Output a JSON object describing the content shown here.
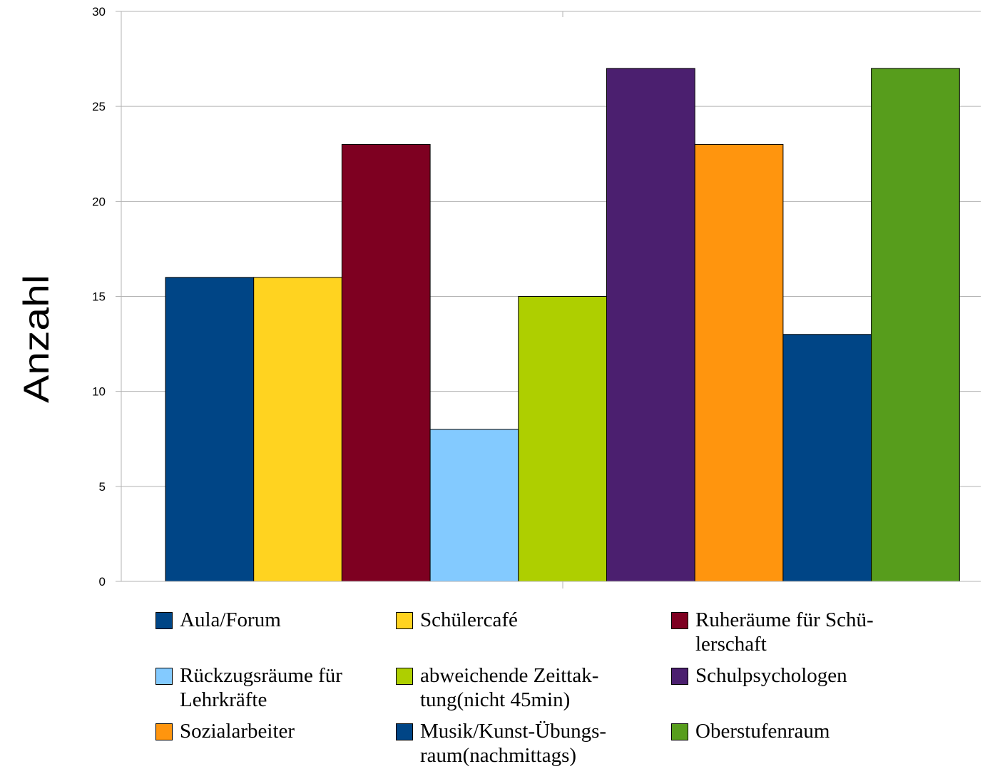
{
  "chart_data": {
    "type": "bar",
    "title": "",
    "xlabel": "",
    "ylabel": "Anzahl",
    "ylim": [
      0,
      30
    ],
    "yticks": [
      0,
      5,
      10,
      15,
      20,
      25,
      30
    ],
    "grid": true,
    "legend_position": "bottom",
    "series": [
      {
        "name": "Aula/Forum",
        "value": 16,
        "color": "#004586"
      },
      {
        "name": "Schülercafé",
        "value": 16,
        "color": "#ffd320"
      },
      {
        "name": "Ruheräume für Schülerschaft",
        "value": 23,
        "color": "#7e0021"
      },
      {
        "name": "Rückzugsräume für Lehrkräfte",
        "value": 8,
        "color": "#83caff"
      },
      {
        "name": "abweichende Zeittaktung(nicht 45min)",
        "value": 15,
        "color": "#aecf00"
      },
      {
        "name": "Schulpsychologen",
        "value": 27,
        "color": "#4b1f6f"
      },
      {
        "name": "Sozialarbeiter",
        "value": 23,
        "color": "#ff950e"
      },
      {
        "name": "Musik/Kunst-Übungsraum(nachmittags)",
        "value": 13,
        "color": "#004586"
      },
      {
        "name": "Oberstufenraum",
        "value": 27,
        "color": "#579d1c"
      }
    ],
    "legend_labels": [
      [
        "Aula/Forum"
      ],
      [
        "Schülercafé"
      ],
      [
        "Ruheräume für Schü-",
        "lerschaft"
      ],
      [
        "Rückzugsräume für",
        "Lehrkräfte"
      ],
      [
        "abweichende Zeittak-",
        "tung(nicht 45min)"
      ],
      [
        "Schulpsychologen"
      ],
      [
        "Sozialarbeiter"
      ],
      [
        "Musik/Kunst-Übungs-",
        "raum(nachmittags)"
      ],
      [
        "Oberstufenraum"
      ]
    ]
  }
}
